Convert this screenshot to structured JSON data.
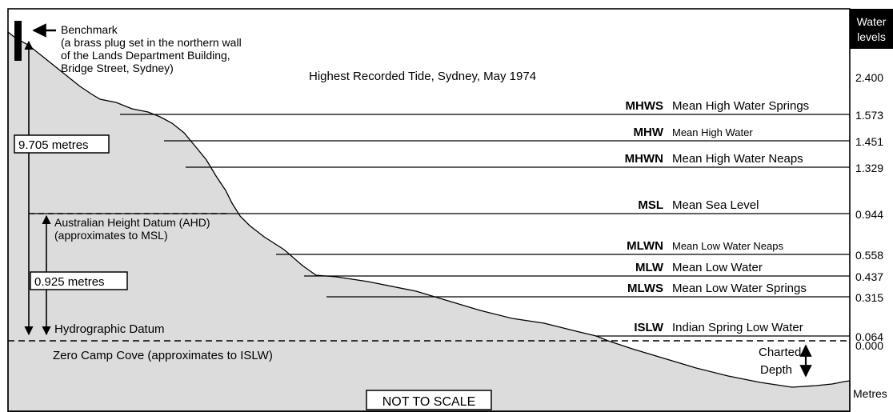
{
  "benchmark": {
    "label": "Benchmark",
    "desc_line1": "(a brass plug set in the northern wall",
    "desc_line2": "of the Lands Department Building,",
    "desc_line3": "Bridge Street, Sydney)"
  },
  "highest_tide": "Highest Recorded Tide, Sydney, May 1974",
  "dims": {
    "benchmark_height": "9.705 metres",
    "ahd_height": "0.925 metres"
  },
  "ahd": {
    "line1": "Australian Height Datum (AHD)",
    "line2": "(approximates to MSL)"
  },
  "hydrographic_datum": "Hydrographic Datum",
  "zero_camp_cove": "Zero Camp Cove (approximates to ISLW)",
  "charted_depth": {
    "line1": "Charted",
    "line2": "Depth"
  },
  "not_to_scale": "NOT TO SCALE",
  "scale": {
    "header_line1": "Water",
    "header_line2": "levels",
    "footer": "Metres",
    "top_value": "2.400",
    "zero_value": "0.000"
  },
  "levels": [
    {
      "abbr": "MHWS",
      "name": "Mean High Water Springs",
      "value": "1.573",
      "small": false
    },
    {
      "abbr": "MHW",
      "name": "Mean High Water",
      "value": "1.451",
      "small": true
    },
    {
      "abbr": "MHWN",
      "name": "Mean High Water Neaps",
      "value": "1.329",
      "small": false
    },
    {
      "abbr": "MSL",
      "name": "Mean Sea Level",
      "value": "0.944",
      "small": false
    },
    {
      "abbr": "MLWN",
      "name": "Mean Low Water Neaps",
      "value": "0.558",
      "small": true
    },
    {
      "abbr": "MLW",
      "name": "Mean Low Water",
      "value": "0.437",
      "small": false
    },
    {
      "abbr": "MLWS",
      "name": "Mean Low Water Springs",
      "value": "0.315",
      "small": false
    },
    {
      "abbr": "ISLW",
      "name": "Indian Spring Low Water",
      "value": "0.064",
      "small": false
    }
  ],
  "colors": {
    "land": "#dcdcdc",
    "frame": "#000000",
    "header_bg": "#000000",
    "header_text": "#ffffff"
  }
}
